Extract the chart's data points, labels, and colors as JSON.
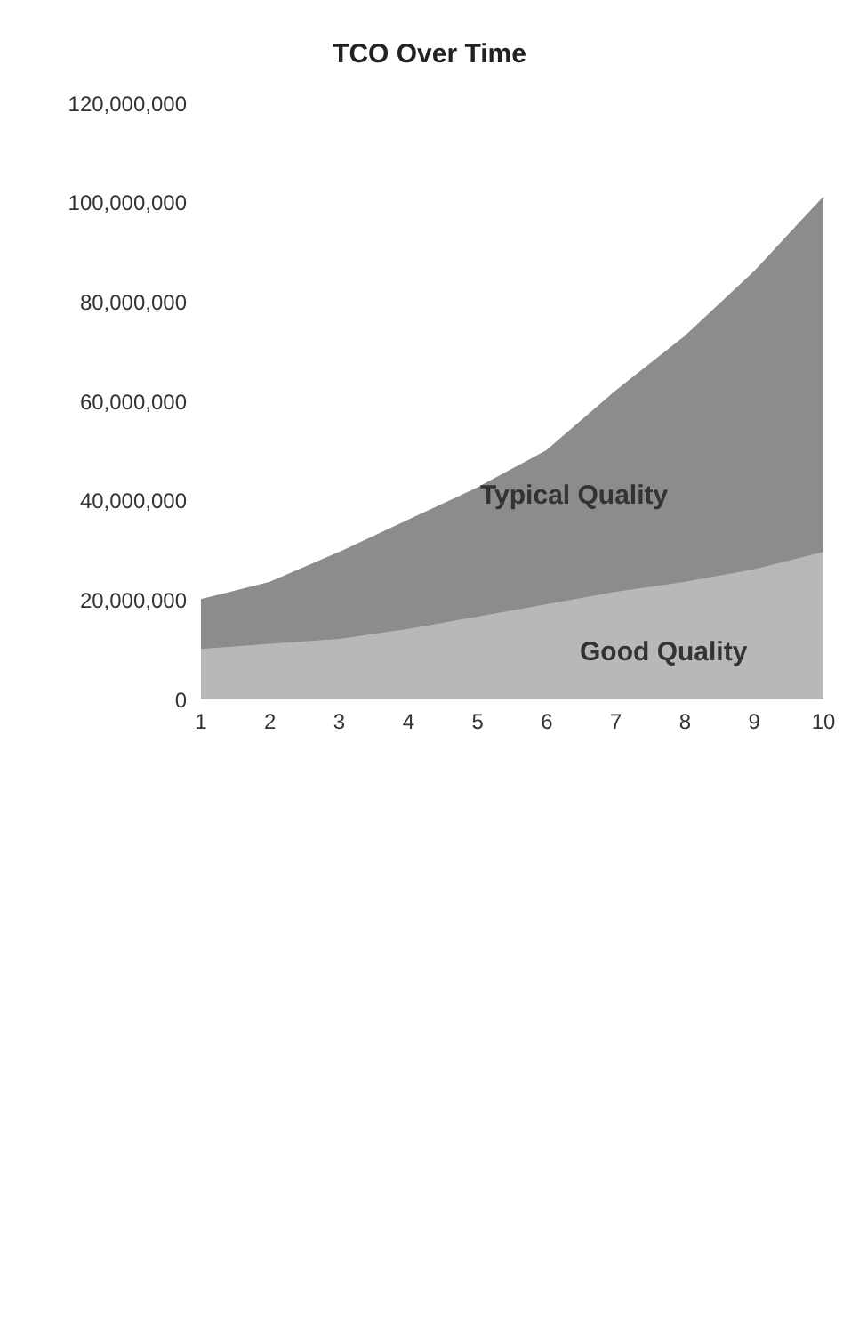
{
  "chart_data": {
    "type": "area",
    "title": "TCO Over Time",
    "categories": [
      "1",
      "2",
      "3",
      "4",
      "5",
      "6",
      "7",
      "8",
      "9",
      "10"
    ],
    "series": [
      {
        "name": "Typical Quality",
        "color": "#8c8c8c",
        "values": [
          20000000,
          23500000,
          29500000,
          36000000,
          42500000,
          50000000,
          62000000,
          73000000,
          86000000,
          101000000
        ]
      },
      {
        "name": "Good Quality",
        "color": "#b8b8b8",
        "values": [
          10000000,
          11000000,
          12000000,
          14000000,
          16500000,
          19000000,
          21500000,
          23500000,
          26000000,
          29500000
        ]
      }
    ],
    "ylim": [
      0,
      120000000
    ],
    "yticks": [
      0,
      {
        "value": 20000000,
        "label": "20,000,000"
      },
      {
        "value": 40000000,
        "label": "40,000,000"
      },
      {
        "value": 60000000,
        "label": "60,000,000"
      },
      {
        "value": 80000000,
        "label": "80,000,000"
      },
      {
        "value": 100000000,
        "label": "100,000,000"
      },
      {
        "value": 120000000,
        "label": "120,000,000"
      }
    ],
    "grid": false,
    "legend": false
  }
}
